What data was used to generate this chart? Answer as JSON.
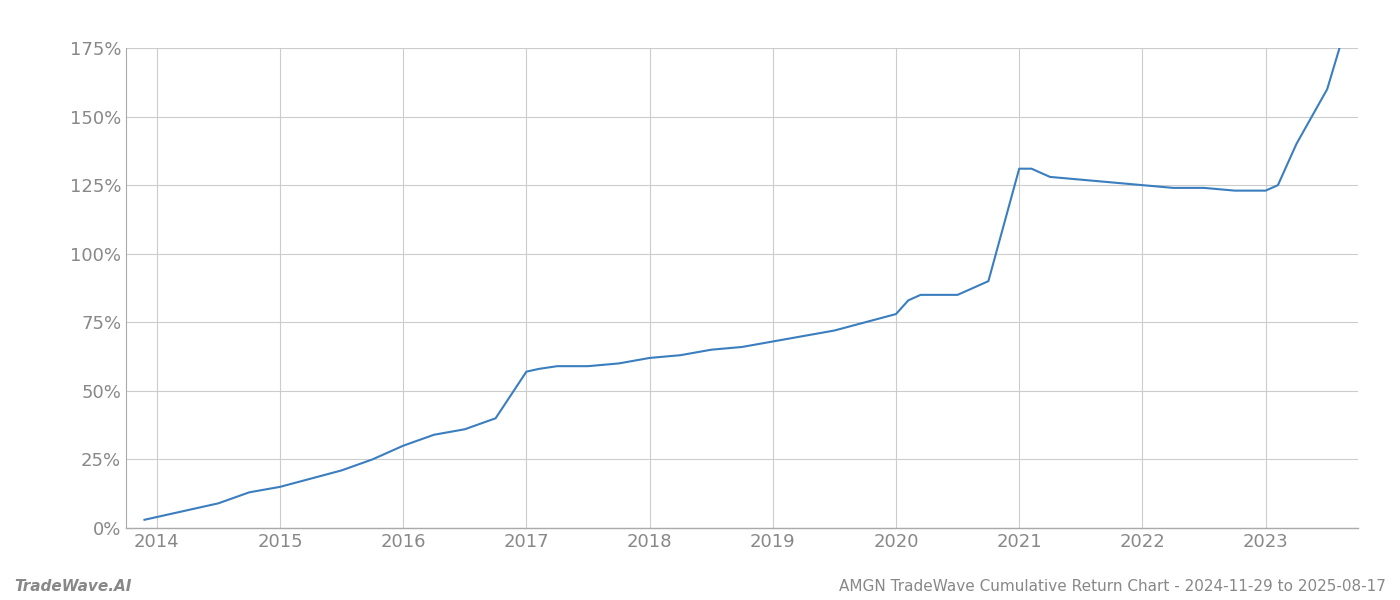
{
  "x_values": [
    2013.9,
    2014.1,
    2014.3,
    2014.5,
    2014.75,
    2015.0,
    2015.25,
    2015.5,
    2015.75,
    2016.0,
    2016.25,
    2016.5,
    2016.75,
    2017.0,
    2017.1,
    2017.25,
    2017.5,
    2017.75,
    2018.0,
    2018.25,
    2018.5,
    2018.75,
    2019.0,
    2019.25,
    2019.5,
    2019.75,
    2020.0,
    2020.1,
    2020.2,
    2020.5,
    2020.75,
    2021.0,
    2021.1,
    2021.25,
    2021.5,
    2021.75,
    2022.0,
    2022.25,
    2022.5,
    2022.75,
    2023.0,
    2023.1,
    2023.25,
    2023.5,
    2023.6
  ],
  "y_values": [
    3,
    5,
    7,
    9,
    13,
    15,
    18,
    21,
    25,
    30,
    34,
    36,
    40,
    57,
    58,
    59,
    59,
    60,
    62,
    63,
    65,
    66,
    68,
    70,
    72,
    75,
    78,
    83,
    85,
    85,
    90,
    131,
    131,
    128,
    127,
    126,
    125,
    124,
    124,
    123,
    123,
    125,
    140,
    160,
    175
  ],
  "line_color": "#3a7ebf",
  "line_width": 1.5,
  "yticks": [
    0,
    25,
    50,
    75,
    100,
    125,
    150,
    175
  ],
  "xticks": [
    2014,
    2015,
    2016,
    2017,
    2018,
    2019,
    2020,
    2021,
    2022,
    2023
  ],
  "xlim": [
    2013.75,
    2023.75
  ],
  "ylim": [
    0,
    175
  ],
  "grid_color": "#cccccc",
  "background_color": "#ffffff",
  "text_color": "#888888",
  "footer_left": "TradeWave.AI",
  "footer_right": "AMGN TradeWave Cumulative Return Chart - 2024-11-29 to 2025-08-17",
  "tick_fontsize": 13,
  "footer_fontsize": 11,
  "left_spine_color": "#aaaaaa",
  "bottom_spine_color": "#aaaaaa"
}
